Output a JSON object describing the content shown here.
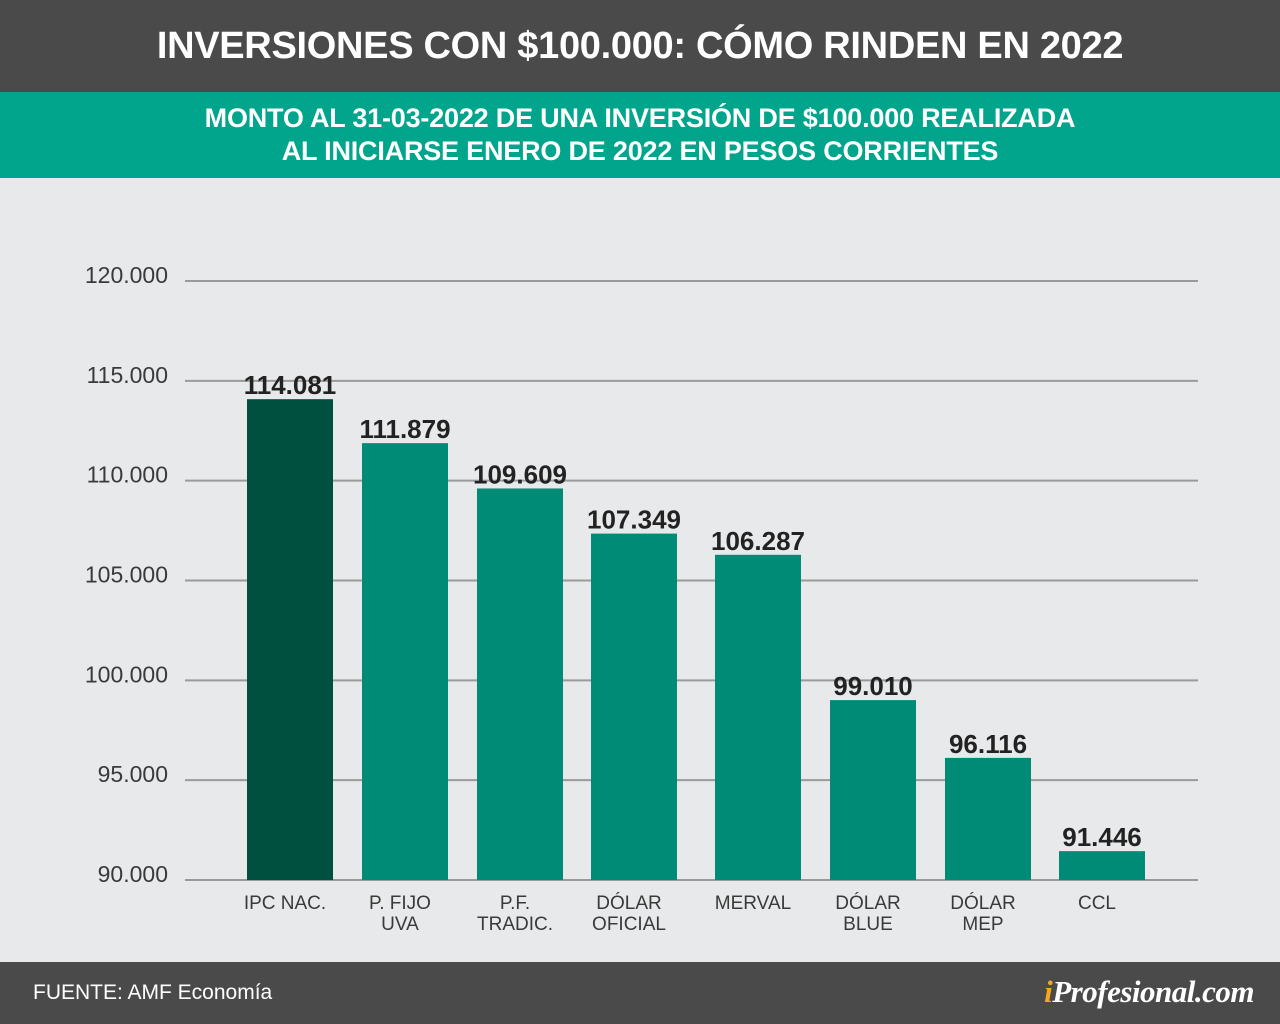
{
  "header": {
    "title": "INVERSIONES CON $100.000: CÓMO RINDEN EN 2022",
    "subtitle_line1": "MONTO AL 31-03-2022 DE UNA INVERSIÓN DE $100.000 REALIZADA",
    "subtitle_line2": "AL INICIARSE ENERO DE 2022 EN PESOS CORRIENTES"
  },
  "footer": {
    "source": "FUENTE: AMF Economía",
    "brand_i": "i",
    "brand_rest": "Profesional.com"
  },
  "colors": {
    "title_bg": "#4a4a4a",
    "subtitle_bg": "#00a58c",
    "chart_bg": "#e8e9ea",
    "highlight_bar": "#00503f",
    "bar": "#008b77",
    "grid": "#9a9a9a",
    "brand_accent": "#f5a623"
  },
  "chart_data": {
    "type": "bar",
    "categories": [
      [
        "IPC  NAC."
      ],
      [
        "P.  FIJO",
        "UVA"
      ],
      [
        "P.F.",
        "TRADIC."
      ],
      [
        "DÓLAR",
        "OFICIAL"
      ],
      [
        "MERVAL"
      ],
      [
        "DÓLAR",
        "BLUE"
      ],
      [
        "DÓLAR",
        "MEP"
      ],
      [
        "CCL"
      ]
    ],
    "values": [
      114081,
      111879,
      109609,
      107349,
      106287,
      99010,
      96116,
      91446
    ],
    "value_labels": [
      "114.081",
      "111.879",
      "109.609",
      "107.349",
      "106.287",
      "99.010",
      "96.116",
      "91.446"
    ],
    "highlight_index": 0,
    "ylim": [
      90000,
      120000
    ],
    "yticks": [
      120000,
      115000,
      110000,
      105000,
      100000,
      95000,
      90000
    ],
    "ytick_labels": [
      "120.000",
      "115.000",
      "110.000",
      "105.000",
      "100.000",
      "95.000",
      "90.000"
    ],
    "grid": true,
    "title": "",
    "xlabel": "",
    "ylabel": ""
  }
}
